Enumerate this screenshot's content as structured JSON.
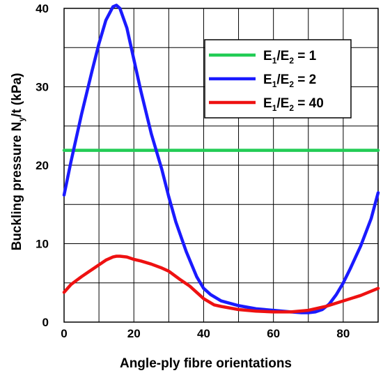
{
  "chart_data": {
    "type": "line",
    "xlabel": "Angle-ply fibre orientations",
    "ylabel_main": "Buckling pressure N",
    "ylabel_sub": "y",
    "ylabel_rest": "/t (kPa)",
    "xlim": [
      0,
      90
    ],
    "ylim": [
      0,
      40
    ],
    "xticks": [
      0,
      20,
      40,
      60,
      80
    ],
    "yticks": [
      0,
      10,
      20,
      30,
      40
    ],
    "xgrid": [
      0,
      10,
      20,
      30,
      40,
      50,
      60,
      70,
      80,
      90
    ],
    "ygrid": [
      5,
      10,
      15,
      20,
      25,
      30,
      35,
      40
    ],
    "grid": true,
    "legend_position": "top-right",
    "series": [
      {
        "name": "E1/E2 = 1",
        "legend": {
          "a": "E",
          "a_sub": "1",
          "sep": "/E",
          "b_sub": "2",
          "tail": " = 1"
        },
        "color": "#22cc55",
        "x": [
          0,
          90
        ],
        "y": [
          21.9,
          21.9
        ]
      },
      {
        "name": "E1/E2 = 2",
        "legend": {
          "a": "E",
          "a_sub": "1",
          "sep": "/E",
          "b_sub": "2",
          "tail": " = 2"
        },
        "color": "#1a1aff",
        "x": [
          0,
          2,
          5,
          8,
          10,
          12,
          14,
          15,
          16,
          18,
          20,
          22,
          25,
          28,
          30,
          32,
          35,
          38,
          40,
          42,
          45,
          50,
          55,
          60,
          65,
          68,
          70,
          72,
          74,
          76,
          78,
          80,
          82,
          85,
          88,
          90
        ],
        "y": [
          16.2,
          20.5,
          26.5,
          32.0,
          35.5,
          38.5,
          40.2,
          40.4,
          40.0,
          37.5,
          33.5,
          29.5,
          24.0,
          19.5,
          16.0,
          12.8,
          9.0,
          5.8,
          4.3,
          3.5,
          2.7,
          2.1,
          1.7,
          1.5,
          1.3,
          1.2,
          1.2,
          1.3,
          1.6,
          2.3,
          3.5,
          5.0,
          6.8,
          9.7,
          13.2,
          16.5
        ]
      },
      {
        "name": "E1/E2 = 40",
        "legend": {
          "a": "E",
          "a_sub": "1",
          "sep": "/E",
          "b_sub": "2",
          "tail": " = 40"
        },
        "color": "#ee1111",
        "x": [
          0,
          2,
          5,
          8,
          10,
          12,
          14,
          15,
          16,
          18,
          20,
          22,
          25,
          28,
          30,
          33,
          36,
          40,
          43,
          45,
          50,
          55,
          60,
          65,
          70,
          75,
          80,
          85,
          90
        ],
        "y": [
          3.8,
          4.8,
          5.8,
          6.7,
          7.3,
          7.9,
          8.3,
          8.4,
          8.4,
          8.3,
          8.0,
          7.8,
          7.4,
          6.9,
          6.5,
          5.5,
          4.6,
          3.0,
          2.2,
          2.0,
          1.6,
          1.4,
          1.3,
          1.3,
          1.5,
          2.0,
          2.7,
          3.4,
          4.3
        ]
      }
    ]
  }
}
